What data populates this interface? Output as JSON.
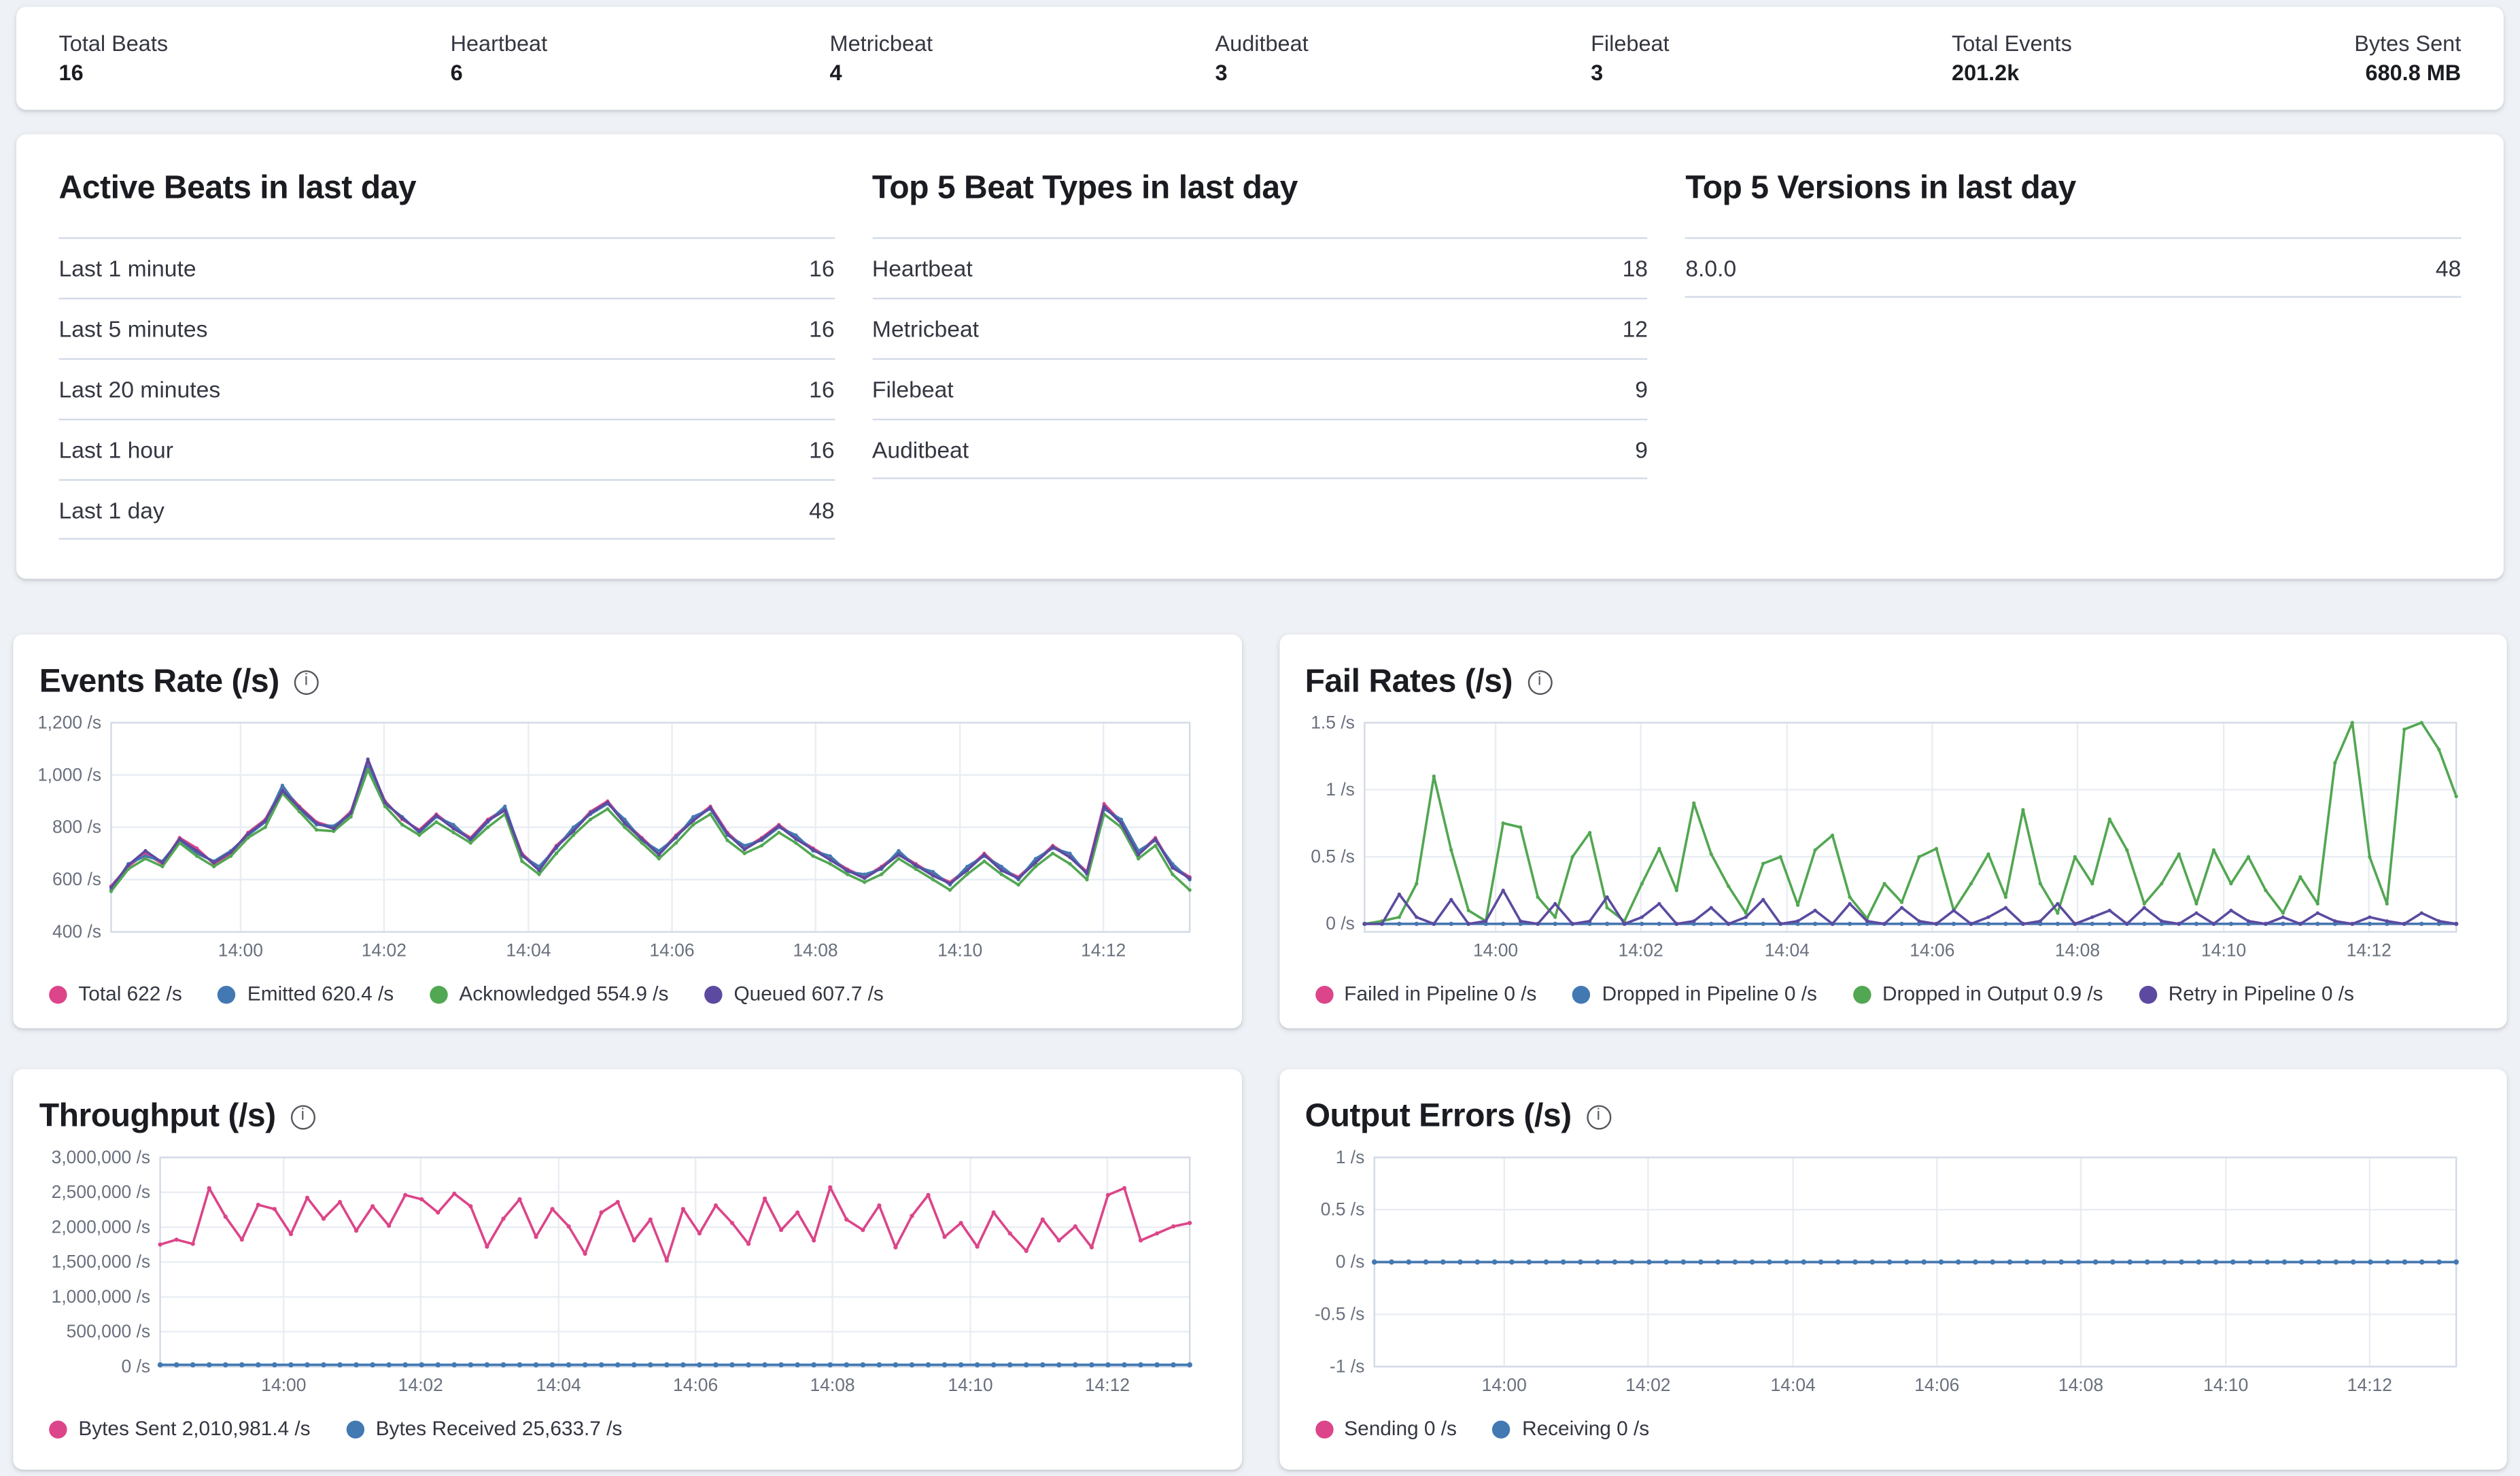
{
  "stats": {
    "items": [
      {
        "label": "Total Beats",
        "value": "16"
      },
      {
        "label": "Heartbeat",
        "value": "6"
      },
      {
        "label": "Metricbeat",
        "value": "4"
      },
      {
        "label": "Auditbeat",
        "value": "3"
      },
      {
        "label": "Filebeat",
        "value": "3"
      },
      {
        "label": "Total Events",
        "value": "201.2k"
      },
      {
        "label": "Bytes Sent",
        "value": "680.8 MB"
      }
    ]
  },
  "tables": [
    {
      "title": "Active Beats in last day",
      "rows": [
        [
          "Last 1 minute",
          "16"
        ],
        [
          "Last 5 minutes",
          "16"
        ],
        [
          "Last 20 minutes",
          "16"
        ],
        [
          "Last 1 hour",
          "16"
        ],
        [
          "Last 1 day",
          "48"
        ]
      ]
    },
    {
      "title": "Top 5 Beat Types in last day",
      "rows": [
        [
          "Heartbeat",
          "18"
        ],
        [
          "Metricbeat",
          "12"
        ],
        [
          "Filebeat",
          "9"
        ],
        [
          "Auditbeat",
          "9"
        ]
      ]
    },
    {
      "title": "Top 5 Versions in last day",
      "rows": [
        [
          "8.0.0",
          "48"
        ]
      ]
    }
  ],
  "chart_data": [
    {
      "type": "line",
      "title": "Events Rate (/s)",
      "xlabel": "",
      "ylabel": "",
      "ylim": [
        400,
        1200
      ],
      "margin_left": 44,
      "points": 64,
      "y_ticks": [
        {
          "v": 400,
          "label": "400 /s"
        },
        {
          "v": 600,
          "label": "600 /s"
        },
        {
          "v": 800,
          "label": "800 /s"
        },
        {
          "v": 1000,
          "label": "1,000 /s"
        },
        {
          "v": 1200,
          "label": "1,200 /s"
        }
      ],
      "x_ticks": [
        {
          "p": 0.12,
          "label": "14:00"
        },
        {
          "p": 0.253,
          "label": "14:02"
        },
        {
          "p": 0.387,
          "label": "14:04"
        },
        {
          "p": 0.52,
          "label": "14:06"
        },
        {
          "p": 0.653,
          "label": "14:08"
        },
        {
          "p": 0.787,
          "label": "14:10"
        },
        {
          "p": 0.92,
          "label": "14:12"
        }
      ],
      "series": [
        {
          "name": "Total",
          "legend": "Total 622 /s",
          "color": "#dc4589",
          "marker_r": 1.1,
          "values": [
            575,
            650,
            700,
            660,
            760,
            720,
            660,
            700,
            780,
            830,
            950,
            880,
            820,
            800,
            860,
            1050,
            900,
            830,
            790,
            850,
            800,
            760,
            830,
            870,
            700,
            640,
            730,
            790,
            860,
            900,
            820,
            760,
            700,
            770,
            830,
            880,
            780,
            720,
            760,
            810,
            760,
            720,
            680,
            640,
            610,
            650,
            700,
            660,
            620,
            590,
            640,
            700,
            640,
            610,
            670,
            730,
            690,
            630,
            890,
            820,
            700,
            760,
            650,
            610
          ]
        },
        {
          "name": "Emitted",
          "legend": "Emitted 620.4 /s",
          "color": "#4379b2",
          "marker_r": 1.1,
          "values": [
            560,
            660,
            690,
            670,
            750,
            700,
            670,
            710,
            770,
            820,
            960,
            870,
            810,
            805,
            850,
            1030,
            890,
            840,
            780,
            840,
            810,
            750,
            820,
            880,
            690,
            650,
            720,
            800,
            850,
            890,
            830,
            750,
            710,
            760,
            840,
            870,
            770,
            730,
            750,
            800,
            770,
            710,
            690,
            630,
            620,
            640,
            710,
            650,
            630,
            580,
            650,
            690,
            650,
            600,
            680,
            720,
            700,
            620,
            870,
            830,
            710,
            750,
            660,
            600
          ]
        },
        {
          "name": "Acknowledged",
          "legend": "Acknowledged 554.9 /s",
          "color": "#52a752",
          "marker_r": 1.1,
          "values": [
            555,
            640,
            680,
            650,
            740,
            690,
            650,
            690,
            760,
            800,
            930,
            860,
            790,
            785,
            840,
            1020,
            880,
            810,
            770,
            820,
            780,
            740,
            800,
            850,
            670,
            620,
            700,
            770,
            830,
            870,
            800,
            740,
            680,
            740,
            810,
            850,
            750,
            700,
            730,
            780,
            740,
            690,
            660,
            620,
            590,
            620,
            680,
            640,
            600,
            560,
            620,
            670,
            620,
            580,
            650,
            700,
            660,
            600,
            850,
            800,
            680,
            730,
            620,
            560
          ]
        },
        {
          "name": "Queued",
          "legend": "Queued 607.7 /s",
          "color": "#5c4aa0",
          "marker_r": 1.1,
          "values": [
            570,
            655,
            710,
            665,
            755,
            710,
            665,
            705,
            775,
            825,
            940,
            875,
            815,
            795,
            855,
            1060,
            895,
            835,
            785,
            845,
            795,
            755,
            825,
            865,
            695,
            635,
            725,
            785,
            855,
            895,
            815,
            755,
            695,
            765,
            825,
            875,
            775,
            715,
            755,
            805,
            755,
            715,
            675,
            635,
            605,
            645,
            695,
            655,
            615,
            585,
            635,
            695,
            635,
            605,
            665,
            725,
            685,
            625,
            880,
            815,
            695,
            755,
            645,
            605
          ]
        }
      ]
    },
    {
      "type": "line",
      "title": "Fail Rates (/s)",
      "xlabel": "",
      "ylabel": "",
      "ylim": [
        -0.06,
        1.5
      ],
      "margin_left": 36,
      "points": 64,
      "y_ticks": [
        {
          "v": 0,
          "label": "0 /s"
        },
        {
          "v": 0.5,
          "label": "0.5 /s"
        },
        {
          "v": 1,
          "label": "1 /s"
        },
        {
          "v": 1.5,
          "label": "1.5 /s"
        }
      ],
      "x_ticks": [
        {
          "p": 0.12,
          "label": "14:00"
        },
        {
          "p": 0.253,
          "label": "14:02"
        },
        {
          "p": 0.387,
          "label": "14:04"
        },
        {
          "p": 0.52,
          "label": "14:06"
        },
        {
          "p": 0.653,
          "label": "14:08"
        },
        {
          "p": 0.787,
          "label": "14:10"
        },
        {
          "p": 0.92,
          "label": "14:12"
        }
      ],
      "series": [
        {
          "name": "Failed in Pipeline",
          "legend": "Failed in Pipeline 0 /s",
          "color": "#dc4589",
          "flat": 0,
          "marker_r": 1.3
        },
        {
          "name": "Dropped in Pipeline",
          "legend": "Dropped in Pipeline 0 /s",
          "color": "#4379b2",
          "flat": 0,
          "marker_r": 1.3
        },
        {
          "name": "Dropped in Output",
          "legend": "Dropped in Output 0.9 /s",
          "color": "#52a752",
          "marker_r": 1.1,
          "values": [
            0,
            0.02,
            0.05,
            0.3,
            1.1,
            0.55,
            0.1,
            0.02,
            0.75,
            0.72,
            0.2,
            0.05,
            0.5,
            0.68,
            0.12,
            0.02,
            0.3,
            0.56,
            0.25,
            0.9,
            0.52,
            0.28,
            0.08,
            0.45,
            0.5,
            0.14,
            0.55,
            0.66,
            0.2,
            0.04,
            0.3,
            0.16,
            0.5,
            0.56,
            0.1,
            0.3,
            0.52,
            0.2,
            0.85,
            0.3,
            0.08,
            0.5,
            0.3,
            0.78,
            0.55,
            0.15,
            0.3,
            0.52,
            0.15,
            0.55,
            0.3,
            0.5,
            0.25,
            0.08,
            0.35,
            0.15,
            1.2,
            1.5,
            0.5,
            0.15,
            1.45,
            1.5,
            1.3,
            0.95
          ]
        },
        {
          "name": "Retry in Pipeline",
          "legend": "Retry in Pipeline 0 /s",
          "color": "#5c4aa0",
          "marker_r": 1.1,
          "values": [
            0,
            0,
            0.22,
            0.05,
            0,
            0.18,
            0,
            0.02,
            0.25,
            0.02,
            0,
            0.15,
            0,
            0.02,
            0.2,
            0,
            0.05,
            0.15,
            0,
            0.02,
            0.12,
            0,
            0.05,
            0.18,
            0,
            0.02,
            0.1,
            0,
            0.15,
            0.02,
            0,
            0.12,
            0.02,
            0,
            0.1,
            0,
            0.05,
            0.12,
            0,
            0.02,
            0.15,
            0,
            0.05,
            0.1,
            0,
            0.12,
            0.02,
            0,
            0.08,
            0,
            0.1,
            0.02,
            0,
            0.05,
            0,
            0.08,
            0.02,
            0,
            0.05,
            0.02,
            0,
            0.08,
            0.02,
            0
          ]
        }
      ]
    },
    {
      "type": "line",
      "title": "Throughput (/s)",
      "xlabel": "",
      "ylabel": "",
      "ylim": [
        0,
        3000000
      ],
      "margin_left": 74,
      "points": 64,
      "y_ticks": [
        {
          "v": 0,
          "label": "0 /s"
        },
        {
          "v": 500000,
          "label": "500,000 /s"
        },
        {
          "v": 1000000,
          "label": "1,000,000 /s"
        },
        {
          "v": 1500000,
          "label": "1,500,000 /s"
        },
        {
          "v": 2000000,
          "label": "2,000,000 /s"
        },
        {
          "v": 2500000,
          "label": "2,500,000 /s"
        },
        {
          "v": 3000000,
          "label": "3,000,000 /s"
        }
      ],
      "x_ticks": [
        {
          "p": 0.12,
          "label": "14:00"
        },
        {
          "p": 0.253,
          "label": "14:02"
        },
        {
          "p": 0.387,
          "label": "14:04"
        },
        {
          "p": 0.52,
          "label": "14:06"
        },
        {
          "p": 0.653,
          "label": "14:08"
        },
        {
          "p": 0.787,
          "label": "14:10"
        },
        {
          "p": 0.92,
          "label": "14:12"
        }
      ],
      "series": [
        {
          "name": "Bytes Sent",
          "legend": "Bytes Sent 2,010,981.4 /s",
          "color": "#dc4589",
          "marker_r": 1.3,
          "values": [
            1750000,
            1820000,
            1760000,
            2560000,
            2150000,
            1820000,
            2320000,
            2260000,
            1900000,
            2420000,
            2120000,
            2360000,
            1950000,
            2300000,
            2020000,
            2460000,
            2400000,
            2210000,
            2480000,
            2300000,
            1720000,
            2120000,
            2400000,
            1860000,
            2260000,
            2010000,
            1620000,
            2210000,
            2360000,
            1810000,
            2110000,
            1520000,
            2260000,
            1910000,
            2310000,
            2060000,
            1760000,
            2410000,
            1960000,
            2210000,
            1810000,
            2570000,
            2110000,
            1960000,
            2310000,
            1710000,
            2160000,
            2460000,
            1860000,
            2060000,
            1720000,
            2210000,
            1910000,
            1660000,
            2110000,
            1810000,
            2010000,
            1710000,
            2460000,
            2560000,
            1810000,
            1910000,
            2010000,
            2060000
          ]
        },
        {
          "name": "Bytes Received",
          "legend": "Bytes Received 25,633.7 /s",
          "color": "#4379b2",
          "flat": 25634,
          "marker_r": 1.6
        }
      ]
    },
    {
      "type": "line",
      "title": "Output Errors (/s)",
      "xlabel": "",
      "ylabel": "",
      "ylim": [
        -1,
        1
      ],
      "margin_left": 42,
      "points": 64,
      "y_ticks": [
        {
          "v": -1,
          "label": "-1 /s"
        },
        {
          "v": -0.5,
          "label": "-0.5 /s"
        },
        {
          "v": 0,
          "label": "0 /s"
        },
        {
          "v": 0.5,
          "label": "0.5 /s"
        },
        {
          "v": 1,
          "label": "1 /s"
        }
      ],
      "x_ticks": [
        {
          "p": 0.12,
          "label": "14:00"
        },
        {
          "p": 0.253,
          "label": "14:02"
        },
        {
          "p": 0.387,
          "label": "14:04"
        },
        {
          "p": 0.52,
          "label": "14:06"
        },
        {
          "p": 0.653,
          "label": "14:08"
        },
        {
          "p": 0.787,
          "label": "14:10"
        },
        {
          "p": 0.92,
          "label": "14:12"
        }
      ],
      "series": [
        {
          "name": "Sending",
          "legend": "Sending 0 /s",
          "color": "#dc4589",
          "flat": 0,
          "marker_r": 1.4
        },
        {
          "name": "Receiving",
          "legend": "Receiving 0 /s",
          "color": "#4379b2",
          "flat": 0,
          "marker_r": 1.6
        }
      ]
    }
  ],
  "colors": {
    "pink": "#dc4589",
    "blue": "#4379b2",
    "green": "#52a752",
    "purple": "#5c4aa0",
    "border": "#d3dae6",
    "grid": "#e9edf3",
    "axis_text": "#69707d"
  }
}
